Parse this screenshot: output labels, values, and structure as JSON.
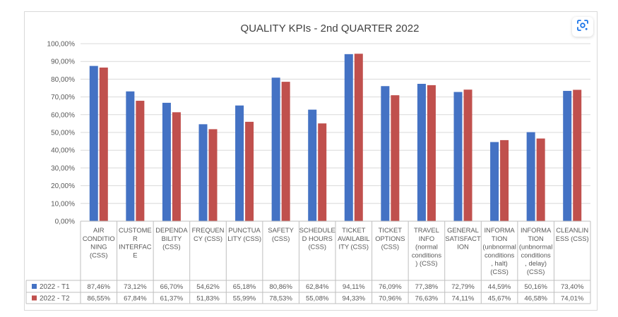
{
  "chart_data": {
    "type": "bar",
    "title": "QUALITY KPIs - 2nd QUARTER 2022",
    "ylim": [
      0,
      100
    ],
    "y_ticks": [
      "0,00%",
      "10,00%",
      "20,00%",
      "30,00%",
      "40,00%",
      "50,00%",
      "60,00%",
      "70,00%",
      "80,00%",
      "90,00%",
      "100,00%"
    ],
    "grid": true,
    "legend": "data-table",
    "categories": [
      [
        "AIR",
        "CONDITIO",
        "NING",
        "(CSS)"
      ],
      [
        "CUSTOME",
        "R",
        "INTERFAC",
        "E"
      ],
      [
        "DEPENDA",
        "BILITY",
        "(CSS)"
      ],
      [
        "FREQUEN",
        "CY (CSS)"
      ],
      [
        "PUNCTUA",
        "LITY (CSS)"
      ],
      [
        "SAFETY",
        "(CSS)"
      ],
      [
        "SCHEDULE",
        "D HOURS",
        "(CSS)"
      ],
      [
        "TICKET",
        "AVAILABIL",
        "ITY (CSS)"
      ],
      [
        "TICKET",
        "OPTIONS",
        "(CSS)"
      ],
      [
        "TRAVEL",
        "INFO",
        "(normal",
        "conditions",
        ") (CSS)"
      ],
      [
        "GENERAL",
        "SATISFACT",
        "ION"
      ],
      [
        "INFORMA",
        "TION",
        "(unbnormal",
        "conditions",
        ", halt)",
        "(CSS)"
      ],
      [
        "INFORMA",
        "TION",
        "(unbnormal",
        "conditions",
        ", delay)",
        "(CSS)"
      ],
      [
        "CLEANLIN",
        "ESS (CSS)"
      ]
    ],
    "series": [
      {
        "name": "2022 - T1",
        "color": "#4472c4",
        "values": [
          87.46,
          73.12,
          66.7,
          54.62,
          65.18,
          80.86,
          62.84,
          94.11,
          76.09,
          77.38,
          72.79,
          44.59,
          50.16,
          73.4
        ],
        "labels": [
          "87,46%",
          "73,12%",
          "66,70%",
          "54,62%",
          "65,18%",
          "80,86%",
          "62,84%",
          "94,11%",
          "76,09%",
          "77,38%",
          "72,79%",
          "44,59%",
          "50,16%",
          "73,40%"
        ]
      },
      {
        "name": "2022 - T2",
        "color": "#c0504d",
        "values": [
          86.55,
          67.84,
          61.37,
          51.83,
          55.99,
          78.53,
          55.08,
          94.33,
          70.96,
          76.63,
          74.11,
          45.67,
          46.58,
          74.01
        ],
        "labels": [
          "86,55%",
          "67,84%",
          "61,37%",
          "51,83%",
          "55,99%",
          "78,53%",
          "55,08%",
          "94,33%",
          "70,96%",
          "76,63%",
          "74,11%",
          "45,67%",
          "46,58%",
          "74,01%"
        ]
      }
    ]
  },
  "icons": {
    "lens": "google-lens-icon"
  }
}
